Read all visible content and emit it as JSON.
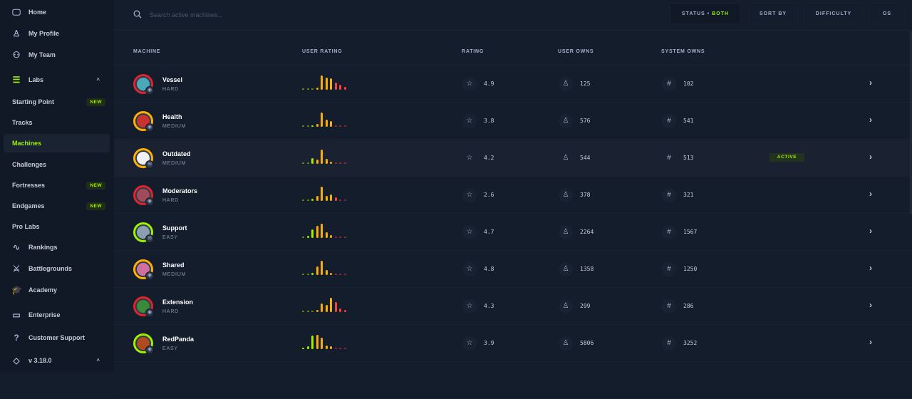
{
  "sidebar": {
    "items": [
      {
        "label": "Home",
        "icon": "monitor-icon",
        "glyph": "🖵"
      },
      {
        "label": "My Profile",
        "icon": "user-icon",
        "glyph": "♙"
      },
      {
        "label": "My Team",
        "icon": "team-icon",
        "glyph": "⚇"
      },
      {
        "label": "Labs",
        "icon": "labs-icon",
        "glyph": "☰"
      },
      {
        "label": "Starting Point",
        "badge": "NEW"
      },
      {
        "label": "Tracks"
      },
      {
        "label": "Machines"
      },
      {
        "label": "Challenges"
      },
      {
        "label": "Fortresses",
        "badge": "NEW"
      },
      {
        "label": "Endgames",
        "badge": "NEW"
      },
      {
        "label": "Pro Labs"
      },
      {
        "label": "Rankings",
        "icon": "pulse-icon",
        "glyph": "∿"
      },
      {
        "label": "Battlegrounds",
        "icon": "crossed-swords-icon",
        "glyph": "⚔"
      },
      {
        "label": "Academy",
        "icon": "graduation-cap-icon",
        "glyph": "🎓"
      },
      {
        "label": "Enterprise",
        "icon": "laptop-icon",
        "glyph": "▭"
      },
      {
        "label": "Customer Support",
        "icon": "help-circle-icon",
        "glyph": "?"
      },
      {
        "label": "v 3.18.0",
        "icon": "tag-icon",
        "glyph": "◇"
      }
    ],
    "active": "Machines"
  },
  "search": {
    "placeholder": "Search active machines..."
  },
  "filters": {
    "status_label": "STATUS •",
    "status_value": "BOTH",
    "sort_by": "SORT BY",
    "difficulty": "DIFFICULTY",
    "os": "OS"
  },
  "columns": {
    "machine": "MACHINE",
    "user_rating": "USER RATING",
    "rating": "RATING",
    "user_owns": "USER OWNS",
    "system_owns": "SYSTEM OWNS"
  },
  "colors": {
    "accent": "#9fef00",
    "orange": "#ffaf00",
    "red": "#ff3e3e",
    "easy": "#9fef00",
    "medium": "#ffaf00",
    "hard": "#e0242e"
  },
  "machines": [
    {
      "name": "Vessel",
      "difficulty": "HARD",
      "os": "linux",
      "rating": "4.9",
      "user_owns": "125",
      "system_owns": "102",
      "user_rating": [
        5,
        5,
        5,
        15,
        100,
        85,
        80,
        50,
        35,
        20
      ]
    },
    {
      "name": "Health",
      "difficulty": "MEDIUM",
      "os": "linux",
      "rating": "3.8",
      "user_owns": "576",
      "system_owns": "541",
      "user_rating": [
        5,
        5,
        12,
        22,
        100,
        50,
        40,
        5,
        5,
        5
      ]
    },
    {
      "name": "Outdated",
      "difficulty": "MEDIUM",
      "os": "windows",
      "rating": "4.2",
      "user_owns": "544",
      "system_owns": "513",
      "status": "ACTIVE",
      "user_rating": [
        5,
        5,
        40,
        30,
        100,
        35,
        15,
        3,
        3,
        3
      ]
    },
    {
      "name": "Moderators",
      "difficulty": "HARD",
      "os": "linux",
      "rating": "2.6",
      "user_owns": "378",
      "system_owns": "321",
      "user_rating": [
        5,
        5,
        15,
        35,
        100,
        35,
        45,
        25,
        5,
        5
      ]
    },
    {
      "name": "Support",
      "difficulty": "EASY",
      "os": "windows",
      "rating": "4.7",
      "user_owns": "2264",
      "system_owns": "1567",
      "user_rating": [
        5,
        15,
        60,
        85,
        100,
        40,
        20,
        3,
        3,
        3
      ]
    },
    {
      "name": "Shared",
      "difficulty": "MEDIUM",
      "os": "linux",
      "rating": "4.8",
      "user_owns": "1358",
      "system_owns": "1250",
      "user_rating": [
        5,
        5,
        15,
        60,
        100,
        35,
        15,
        3,
        3,
        3
      ]
    },
    {
      "name": "Extension",
      "difficulty": "HARD",
      "os": "linux",
      "rating": "4.3",
      "user_owns": "299",
      "system_owns": "286",
      "user_rating": [
        5,
        5,
        5,
        15,
        60,
        50,
        100,
        70,
        25,
        15
      ]
    },
    {
      "name": "RedPanda",
      "difficulty": "EASY",
      "os": "linux",
      "rating": "3.9",
      "user_owns": "5806",
      "system_owns": "3252",
      "user_rating": [
        10,
        20,
        95,
        100,
        80,
        25,
        20,
        3,
        3,
        3
      ]
    }
  ]
}
